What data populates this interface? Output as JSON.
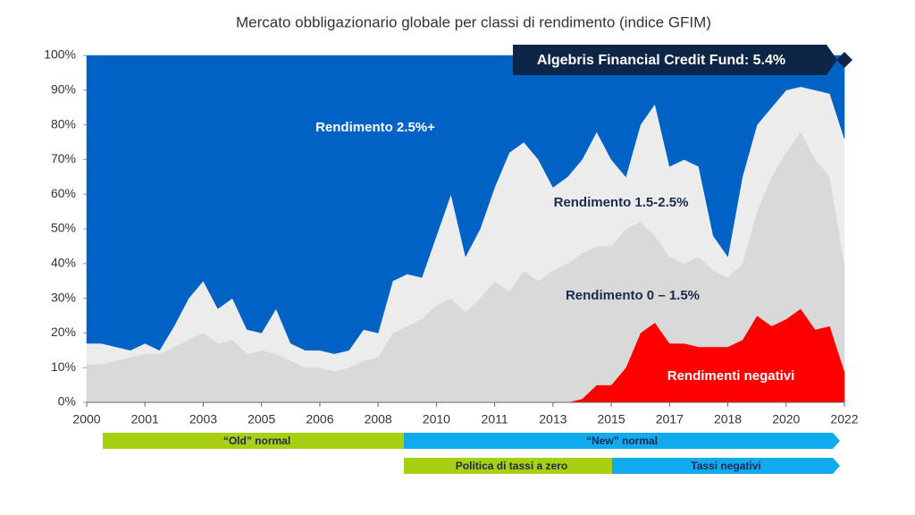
{
  "chart_data": {
    "type": "stacked_area",
    "title": "Mercato obbligazionario globale per classi di rendimento (indice GFIM)",
    "x": [
      0,
      1,
      2,
      3,
      4,
      5,
      6,
      7,
      8,
      9,
      10,
      11,
      12,
      13,
      14,
      15,
      16,
      17,
      18,
      19,
      20,
      21,
      22,
      23,
      24,
      25,
      26,
      27,
      28,
      29,
      30,
      31,
      32,
      33,
      34,
      35,
      36,
      37,
      38,
      39,
      40,
      41,
      42,
      43,
      44,
      45,
      46,
      47,
      48,
      49,
      50,
      51,
      52
    ],
    "xlim": [
      0,
      52
    ],
    "xticks": [
      {
        "value": 0,
        "label": "2000"
      },
      {
        "value": 4,
        "label": "2001"
      },
      {
        "value": 8,
        "label": "2003"
      },
      {
        "value": 12,
        "label": "2005"
      },
      {
        "value": 16,
        "label": "2006"
      },
      {
        "value": 20,
        "label": "2008"
      },
      {
        "value": 24,
        "label": "2010"
      },
      {
        "value": 28,
        "label": "2011"
      },
      {
        "value": 32,
        "label": "2013"
      },
      {
        "value": 36,
        "label": "2015"
      },
      {
        "value": 40,
        "label": "2017"
      },
      {
        "value": 44,
        "label": "2018"
      },
      {
        "value": 48,
        "label": "2020"
      },
      {
        "value": 52,
        "label": "2022"
      }
    ],
    "ylim": [
      0,
      100
    ],
    "yticks": [
      {
        "value": 0,
        "label": "0%"
      },
      {
        "value": 10,
        "label": "10%"
      },
      {
        "value": 20,
        "label": "20%"
      },
      {
        "value": 30,
        "label": "30%"
      },
      {
        "value": 40,
        "label": "40%"
      },
      {
        "value": 50,
        "label": "50%"
      },
      {
        "value": 60,
        "label": "60%"
      },
      {
        "value": 70,
        "label": "70%"
      },
      {
        "value": 80,
        "label": "80%"
      },
      {
        "value": 90,
        "label": "90%"
      },
      {
        "value": 100,
        "label": "100%"
      }
    ],
    "series": [
      {
        "name": "Rendimenti negativi",
        "color": "#ff0000",
        "values": [
          0,
          0,
          0,
          0,
          0,
          0,
          0,
          0,
          0,
          0,
          0,
          0,
          0,
          0,
          0,
          0,
          0,
          0,
          0,
          0,
          0,
          0,
          0,
          0,
          0,
          0,
          0,
          0,
          0,
          0,
          0,
          0,
          0,
          0,
          1,
          5,
          5,
          10,
          20,
          23,
          17,
          17,
          16,
          16,
          16,
          18,
          25,
          22,
          24,
          27,
          21,
          22,
          9
        ]
      },
      {
        "name": "Rendimento 0 – 1.5%",
        "color": "#d9d9d9",
        "values": [
          11,
          11,
          12,
          13,
          14,
          14,
          16,
          18,
          20,
          17,
          18,
          14,
          15,
          14,
          12,
          10,
          10,
          9,
          10,
          12,
          13,
          20,
          22,
          24,
          28,
          30,
          26,
          30,
          35,
          32,
          38,
          35,
          38,
          40,
          42,
          40,
          40,
          40,
          32,
          25,
          25,
          23,
          26,
          22,
          20,
          22,
          30,
          43,
          48,
          51,
          49,
          43,
          31
        ]
      },
      {
        "name": "Rendimento 1.5-2.5%",
        "color": "#ececec",
        "values": [
          6,
          6,
          4,
          2,
          3,
          1,
          6,
          12,
          15,
          10,
          12,
          7,
          5,
          13,
          5,
          5,
          5,
          5,
          5,
          9,
          7,
          15,
          15,
          12,
          20,
          30,
          16,
          20,
          27,
          40,
          37,
          35,
          24,
          25,
          27,
          33,
          25,
          15,
          28,
          38,
          26,
          30,
          26,
          10,
          6,
          25,
          25,
          20,
          18,
          13,
          20,
          24,
          36
        ]
      },
      {
        "name": "Rendimento 2.5%+",
        "color": "#0062c4",
        "values": [
          83,
          83,
          84,
          85,
          83,
          85,
          78,
          70,
          65,
          73,
          70,
          79,
          80,
          73,
          83,
          85,
          85,
          86,
          85,
          79,
          80,
          65,
          63,
          64,
          52,
          40,
          58,
          50,
          38,
          28,
          25,
          30,
          38,
          35,
          30,
          22,
          30,
          35,
          20,
          14,
          32,
          30,
          32,
          52,
          58,
          35,
          20,
          15,
          10,
          9,
          10,
          11,
          24
        ]
      }
    ],
    "annotations": [
      "Algebris Financial Credit Fund: 5.4%",
      "“Old” normal",
      "“New” normal",
      "Politica di tassi a zero",
      "Tassi negativi"
    ]
  }
}
